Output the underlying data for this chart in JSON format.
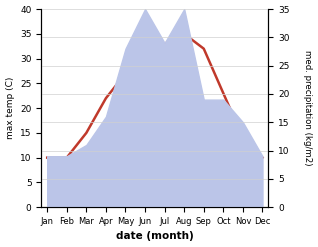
{
  "months": [
    "Jan",
    "Feb",
    "Mar",
    "Apr",
    "May",
    "Jun",
    "Jul",
    "Aug",
    "Sep",
    "Oct",
    "Nov",
    "Dec"
  ],
  "max_temp": [
    10,
    10,
    15,
    22,
    27,
    30,
    33,
    35,
    32,
    23,
    14,
    10
  ],
  "precipitation": [
    9,
    9,
    11,
    16,
    28,
    35,
    29,
    35,
    19,
    19,
    15,
    9
  ],
  "temp_color": "#c0392b",
  "precip_fill_color": "#bbc5e8",
  "temp_ylim": [
    0,
    40
  ],
  "precip_ylim": [
    0,
    35
  ],
  "xlabel": "date (month)",
  "ylabel_left": "max temp (C)",
  "ylabel_right": "med. precipitation (kg/m2)",
  "bg_color": "#ffffff",
  "grid_color": "#d0d0d0"
}
